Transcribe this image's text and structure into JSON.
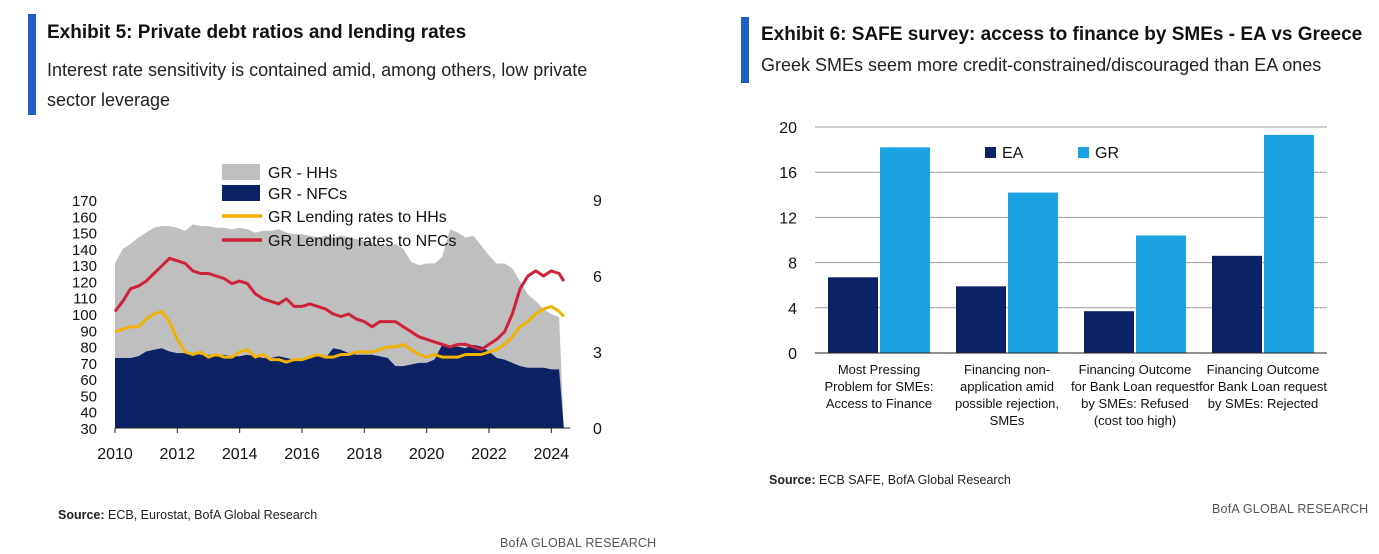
{
  "left": {
    "title": "Exhibit 5: Private debt ratios and lending rates",
    "subtitle": "Interest rate sensitivity is contained amid, among others, low private sector leverage",
    "source_label": "Source:",
    "source_text": "ECB, Eurostat, BofA Global Research",
    "footer": "BofA GLOBAL RESEARCH"
  },
  "right": {
    "title": "Exhibit 6: SAFE survey: access to finance by SMEs - EA vs Greece",
    "subtitle": "Greek SMEs seem more credit-constrained/discouraged than EA ones",
    "source_label": "Source:",
    "source_text": "ECB SAFE, BofA Global Research",
    "footer": "BofA GLOBAL RESEARCH"
  },
  "colors": {
    "hh_area": "#bfbfbf",
    "nfc_area": "#0c2264",
    "rate_hh": "#f0b400",
    "rate_nfc": "#d0213a",
    "ea_bar": "#0c2264",
    "gr_bar": "#1aa3e0",
    "grid": "#999999"
  },
  "chart_data": [
    {
      "type": "area",
      "x_ticks": [
        "2010",
        "2012",
        "2014",
        "2016",
        "2018",
        "2020",
        "2022",
        "2024"
      ],
      "xlim": [
        2010,
        2024.6
      ],
      "y_left_ticks": [
        30,
        40,
        50,
        60,
        70,
        80,
        90,
        100,
        110,
        120,
        130,
        140,
        150,
        160,
        170
      ],
      "ylim_left": [
        30,
        170
      ],
      "y_right_ticks": [
        0,
        3,
        6,
        9
      ],
      "ylim_right": [
        0,
        9
      ],
      "legend": [
        "GR - HHs",
        "GR - NFCs",
        "GR Lending rates to HHs",
        "GR Lending rates to NFCs"
      ],
      "legend_position": "top",
      "grid": false,
      "x": [
        2010,
        2010.25,
        2010.5,
        2010.75,
        2011,
        2011.25,
        2011.5,
        2011.75,
        2012,
        2012.25,
        2012.5,
        2012.75,
        2013,
        2013.25,
        2013.5,
        2013.75,
        2014,
        2014.25,
        2014.5,
        2014.75,
        2015,
        2015.25,
        2015.5,
        2015.75,
        2016,
        2016.25,
        2016.5,
        2016.75,
        2017,
        2017.25,
        2017.5,
        2017.75,
        2018,
        2018.25,
        2018.5,
        2018.75,
        2019,
        2019.25,
        2019.5,
        2019.75,
        2020,
        2020.25,
        2020.5,
        2020.75,
        2021,
        2021.25,
        2021.5,
        2021.75,
        2022,
        2022.25,
        2022.5,
        2022.75,
        2023,
        2023.25,
        2023.5,
        2023.75,
        2024,
        2024.25,
        2024.4
      ],
      "series": [
        {
          "name": "GR - HHs",
          "axis": "left",
          "stacked_total": true,
          "values": [
            131,
            140,
            143,
            147,
            150,
            153,
            154,
            154,
            153,
            151,
            155,
            154,
            154,
            153,
            153,
            152,
            153,
            152,
            150,
            151,
            151,
            152,
            150,
            149,
            149,
            148,
            147,
            148,
            147,
            148,
            147,
            146,
            145,
            144,
            142,
            142,
            143,
            140,
            132,
            130,
            131,
            131,
            135,
            152,
            150,
            147,
            148,
            142,
            136,
            131,
            131,
            128,
            120,
            112,
            108,
            103,
            100,
            98,
            30
          ]
        },
        {
          "name": "GR - NFCs",
          "axis": "left",
          "values": [
            73,
            73,
            73,
            74,
            77,
            78,
            79,
            77,
            76,
            76,
            76,
            75,
            75,
            74,
            75,
            74,
            74,
            75,
            74,
            73,
            73,
            74,
            73,
            72,
            72,
            73,
            74,
            73,
            79,
            78,
            76,
            75,
            75,
            75,
            74,
            73,
            68,
            68,
            69,
            70,
            70,
            72,
            81,
            80,
            80,
            79,
            81,
            80,
            77,
            73,
            72,
            70,
            68,
            67,
            67,
            67,
            66,
            66,
            30
          ]
        },
        {
          "name": "GR Lending rates to HHs",
          "axis": "right",
          "values": [
            3.8,
            3.9,
            4.0,
            4.0,
            4.3,
            4.5,
            4.6,
            4.2,
            3.5,
            3.0,
            2.9,
            3.0,
            2.8,
            2.9,
            2.8,
            2.8,
            3.0,
            3.1,
            2.8,
            2.9,
            2.7,
            2.7,
            2.6,
            2.7,
            2.7,
            2.8,
            2.9,
            2.8,
            2.8,
            2.9,
            2.9,
            3.0,
            3.0,
            3.0,
            3.1,
            3.2,
            3.2,
            3.3,
            3.1,
            2.9,
            2.8,
            2.9,
            2.8,
            2.8,
            2.8,
            2.9,
            2.9,
            2.9,
            3.0,
            3.1,
            3.3,
            3.6,
            4.0,
            4.2,
            4.5,
            4.7,
            4.8,
            4.6,
            4.4
          ]
        },
        {
          "name": "GR Lending rates to NFCs",
          "axis": "right",
          "values": [
            4.6,
            5.0,
            5.5,
            5.6,
            5.8,
            6.1,
            6.4,
            6.7,
            6.6,
            6.5,
            6.2,
            6.1,
            6.1,
            6.0,
            5.9,
            5.7,
            5.8,
            5.7,
            5.3,
            5.1,
            5.0,
            4.9,
            5.1,
            4.8,
            4.8,
            4.9,
            4.8,
            4.7,
            4.5,
            4.4,
            4.5,
            4.3,
            4.2,
            4.0,
            4.2,
            4.2,
            4.2,
            4.0,
            3.8,
            3.6,
            3.5,
            3.4,
            3.3,
            3.2,
            3.3,
            3.3,
            3.2,
            3.1,
            3.3,
            3.5,
            3.8,
            4.5,
            5.5,
            6.0,
            6.2,
            6.0,
            6.2,
            6.1,
            5.8
          ]
        }
      ]
    },
    {
      "type": "bar",
      "categories": [
        [
          "Most Pressing",
          "Problem for SMEs:",
          "Access to Finance"
        ],
        [
          "Financing non-",
          "application amid",
          "possible rejection,",
          "SMEs"
        ],
        [
          "Financing Outcome",
          "for Bank Loan request",
          "by SMEs: Refused",
          "(cost too high)"
        ],
        [
          "Financing Outcome",
          "for Bank Loan request",
          "by SMEs: Rejected"
        ]
      ],
      "series": [
        {
          "name": "EA",
          "values": [
            6.7,
            5.9,
            3.7,
            8.6
          ]
        },
        {
          "name": "GR",
          "values": [
            18.2,
            14.2,
            10.4,
            19.3
          ]
        }
      ],
      "ylim": [
        0,
        20
      ],
      "y_ticks": [
        0,
        4,
        8,
        12,
        16,
        20
      ],
      "legend_position": "top",
      "grid": true
    }
  ]
}
